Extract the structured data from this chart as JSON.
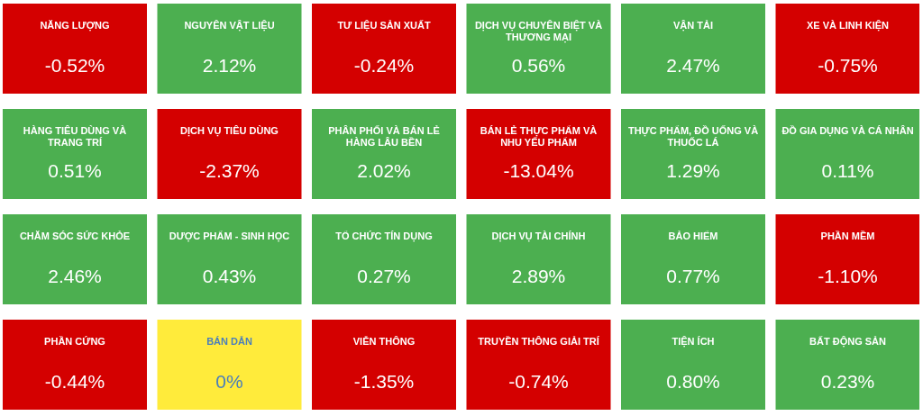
{
  "chart_data": {
    "type": "other",
    "categories": [
      "NĂNG LƯỢNG",
      "NGUYÊN VẬT LIỆU",
      "TƯ LIỆU SẢN XUẤT",
      "DỊCH VỤ CHUYÊN BIỆT VÀ THƯƠNG MẠI",
      "VẬN TẢI",
      "XE VÀ LINH KIỆN",
      "HÀNG TIÊU DÙNG VÀ TRANG TRÍ",
      "DỊCH VỤ TIÊU DÙNG",
      "PHÂN PHỐI VÀ BÁN LẺ HÀNG LÂU BỀN",
      "BÁN LẺ THỰC PHẨM VÀ NHU YẾU PHẨM",
      "THỰC PHẨM, ĐỒ UỐNG VÀ THUỐC LÁ",
      "ĐỒ GIA DỤNG VÀ CÁ NHÂN",
      "CHĂM SÓC SỨC KHỎE",
      "DƯỢC PHẨM - SINH HỌC",
      "TỔ CHỨC TÍN DỤNG",
      "DỊCH VỤ TÀI CHÍNH",
      "BẢO HIỂM",
      "PHẦN MỀM",
      "PHẦN CỨNG",
      "BÁN DẪN",
      "VIỄN THÔNG",
      "TRUYỀN THÔNG GIẢI TRÍ",
      "TIỆN ÍCH",
      "BẤT ĐỘNG SẢN"
    ],
    "values": [
      -0.52,
      2.12,
      -0.24,
      0.56,
      2.47,
      -0.75,
      0.51,
      -2.37,
      2.02,
      -13.04,
      1.29,
      0.11,
      2.46,
      0.43,
      0.27,
      2.89,
      0.77,
      -1.1,
      -0.44,
      0,
      -1.35,
      -0.74,
      0.8,
      0.23
    ],
    "value_labels": [
      "-0.52%",
      "2.12%",
      "-0.24%",
      "0.56%",
      "2.47%",
      "-0.75%",
      "0.51%",
      "-2.37%",
      "2.02%",
      "-13.04%",
      "1.29%",
      "0.11%",
      "2.46%",
      "0.43%",
      "0.27%",
      "2.89%",
      "0.77%",
      "-1.10%",
      "-0.44%",
      "0%",
      "-1.35%",
      "-0.74%",
      "0.80%",
      "0.23%"
    ],
    "colors": [
      "#d40000",
      "#4caf50",
      "#d40000",
      "#4caf50",
      "#4caf50",
      "#d40000",
      "#4caf50",
      "#d40000",
      "#4caf50",
      "#d40000",
      "#4caf50",
      "#4caf50",
      "#4caf50",
      "#4caf50",
      "#4caf50",
      "#4caf50",
      "#4caf50",
      "#d40000",
      "#d40000",
      "#ffeb3b",
      "#d40000",
      "#d40000",
      "#4caf50",
      "#4caf50"
    ]
  }
}
